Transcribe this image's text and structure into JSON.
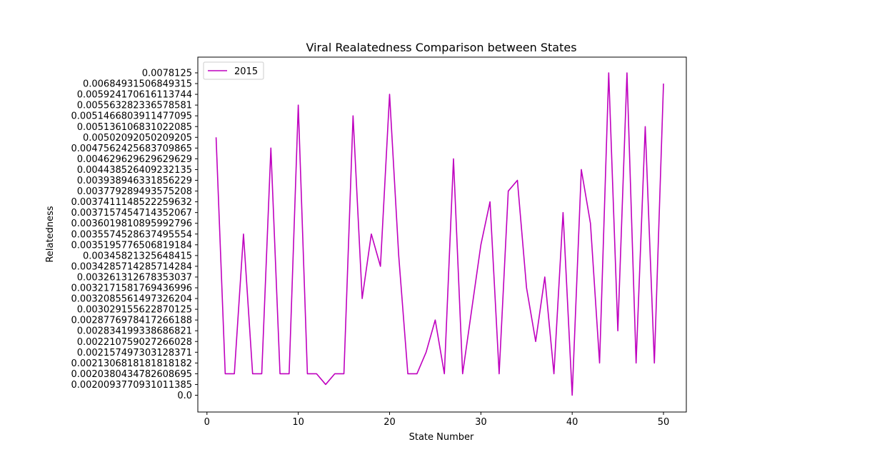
{
  "chart_data": {
    "type": "line",
    "title": "Viral Realatedness Comparison between States",
    "xlabel": "State Number",
    "ylabel": "Relatedness",
    "xlim": [
      -1,
      52.5
    ],
    "x_ticks": [
      0,
      10,
      20,
      30,
      40,
      50
    ],
    "y_ticks": [
      "0.0",
      "0.0020093770931011385",
      "0.0020380434782608695",
      "0.0021306818181818182",
      "0.0021574973031283710",
      "0.0022107590272660280",
      "0.0028341993386868210",
      "0.0028776978417266188",
      "0.0030291556228701250",
      "0.0032085561497326204",
      "0.0032171581769436996",
      "0.0032613126783530370",
      "0.0034285714285714284",
      "0.0034582132564841500",
      "0.0035195776506819184",
      "0.0035574528637495554",
      "0.0036019810895992796",
      "0.0037157454714352067",
      "0.0037411148522259632",
      "0.0037792894935752080",
      "0.0039389463318562290",
      "0.0044385264092321350",
      "0.0046296296296296290",
      "0.0047562425683709865",
      "0.0050209205020920500",
      "0.0051361068310220850",
      "0.0051466803911477095",
      "0.0055632823365785810",
      "0.0059241706161137440",
      "0.0068493150684931500",
      "0.0078125"
    ],
    "y_tick_labels": [
      "0.0",
      "0.0020093770931011385",
      "0.0020380434782608695",
      "0.0021306818181818182",
      "0.00215749730312837 1",
      "0.002210759027266028",
      "0.0028341993386868 21",
      "0.0028776978417266188",
      "0.0030291556228701 25",
      "0.0032085561497326204",
      "0.0032171581769436996",
      "0.0032613126783530 37",
      "0.0034285714285714284",
      "0.00345821325648415",
      "0.0035195776506819184",
      "0.0035574528637495554",
      "0.0036019810895992796",
      "0.0037157454714352067",
      "0.0037411148522259632",
      "0.0037792894935752 08",
      "0.0039389463318562 29",
      "0.0044385264092321 35",
      "0.0046296296296296 29",
      "0.0047562425683709865",
      "0.0050209205020920 5",
      "0.0051361068310220 85",
      "0.0051466803911477095",
      "0.0055632823365785 81",
      "0.0059241706161137 44",
      "0.0068493150684931 5",
      "0.0078125"
    ],
    "series": [
      {
        "name": "2015",
        "color": "#bf00bf",
        "x": [
          1,
          2,
          3,
          4,
          5,
          6,
          7,
          8,
          9,
          10,
          11,
          12,
          13,
          14,
          15,
          16,
          17,
          18,
          19,
          20,
          21,
          22,
          23,
          24,
          25,
          26,
          27,
          28,
          29,
          30,
          31,
          32,
          33,
          34,
          35,
          36,
          37,
          38,
          39,
          40,
          41,
          42,
          43,
          44,
          45,
          46,
          47,
          48,
          49,
          50
        ],
        "y_rank": [
          24,
          2,
          2,
          15,
          2,
          2,
          23,
          2,
          2,
          27,
          2,
          2,
          1,
          2,
          2,
          26,
          9,
          15,
          12,
          28,
          13,
          2,
          2,
          4,
          7,
          2,
          22,
          2,
          8,
          14,
          18,
          2,
          19,
          20,
          10,
          5,
          11,
          2,
          17,
          0,
          21,
          16,
          3,
          30,
          6,
          30,
          3,
          25,
          3,
          29
        ]
      }
    ],
    "legend": {
      "position": "upper-left",
      "entries": [
        "2015"
      ]
    },
    "grid": false
  }
}
